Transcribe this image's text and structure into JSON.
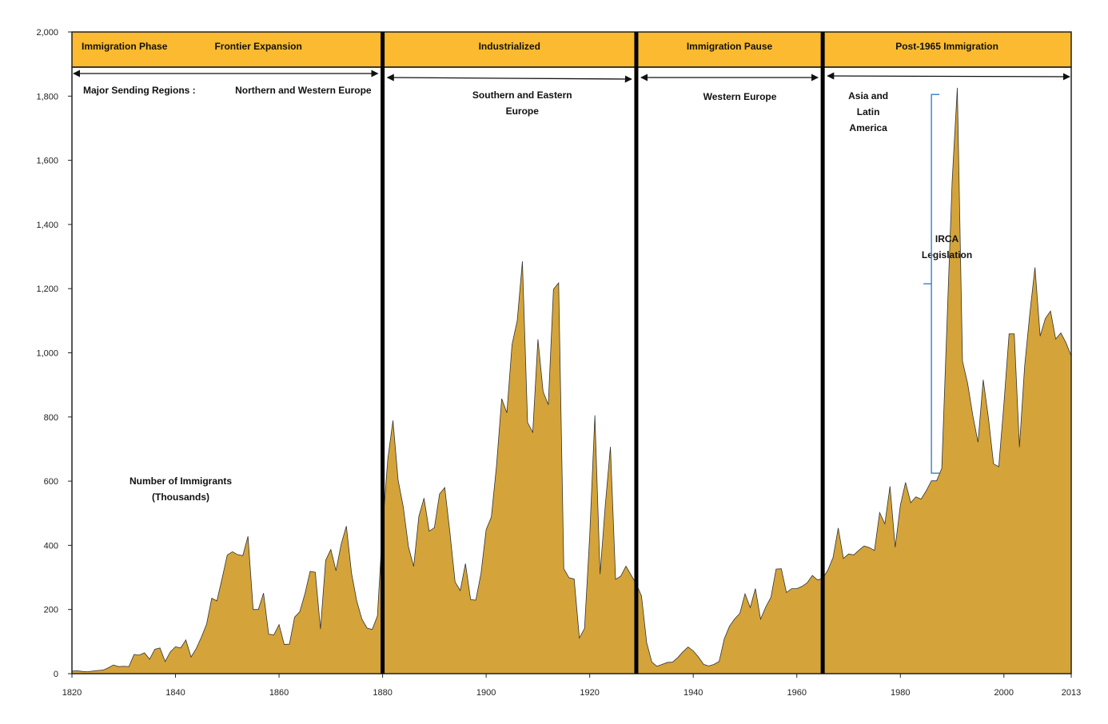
{
  "chart_data": {
    "type": "area",
    "title": "",
    "xlabel": "",
    "ylabel": "",
    "ylim": [
      0,
      2000
    ],
    "xlim": [
      1820,
      2013
    ],
    "y_ticks": [
      0,
      200,
      400,
      600,
      800,
      1000,
      1200,
      1400,
      1600,
      1800,
      2000
    ],
    "y_tick_labels": [
      "0",
      "200",
      "400",
      "600",
      "800",
      "1,000",
      "1,200",
      "1,400",
      "1,600",
      "1,800",
      "2,000"
    ],
    "x_ticks": [
      1820,
      1840,
      1860,
      1880,
      1900,
      1920,
      1940,
      1960,
      1980,
      2000,
      2013
    ],
    "x_tick_labels": [
      "1820",
      "1840",
      "1860",
      "1880",
      "1900",
      "1920",
      "1940",
      "1960",
      "1980",
      "2000",
      "2013"
    ],
    "fill_color": "#D4A43A",
    "stroke_color": "#333333",
    "header_color": "#FBBA2F",
    "phase_boundaries": [
      1880,
      1929,
      1965
    ],
    "phases": [
      {
        "label": "Immigration Phase",
        "start": 1820,
        "end": 1880,
        "align": "left"
      },
      {
        "label": "Frontier Expansion",
        "start": 1820,
        "end": 1880,
        "align": "center"
      },
      {
        "label": "Industrialized",
        "start": 1880,
        "end": 1929,
        "align": "center"
      },
      {
        "label": "Immigration Pause",
        "start": 1929,
        "end": 1965,
        "align": "center"
      },
      {
        "label": "Post-1965 Immigration",
        "start": 1965,
        "end": 2013,
        "align": "center"
      }
    ],
    "sending_regions_label": "Major Sending Regions :",
    "sending_regions": [
      {
        "lines": [
          "Northern and Western Europe"
        ],
        "start": 1820,
        "end": 1880
      },
      {
        "lines": [
          "Southern and Eastern",
          "Europe"
        ],
        "start": 1880,
        "end": 1929
      },
      {
        "lines": [
          "Western Europe"
        ],
        "start": 1929,
        "end": 1965
      },
      {
        "lines": [
          "Asia and",
          "Latin",
          "America"
        ],
        "start": 1965,
        "end": 2013
      }
    ],
    "annotations": [
      {
        "lines": [
          "Number of Immigrants",
          "(Thousands)"
        ],
        "x": 1841,
        "y": 590
      },
      {
        "lines": [
          "IRCA",
          "Legislation"
        ],
        "x": 1989,
        "y": 1345
      }
    ],
    "bracket": {
      "x": 1986,
      "y_bottom": 625,
      "y_top": 1805
    },
    "series": [
      {
        "name": "Number of Immigrants (Thousands)",
        "x": [
          1820,
          1821,
          1822,
          1823,
          1824,
          1825,
          1826,
          1827,
          1828,
          1829,
          1830,
          1831,
          1832,
          1833,
          1834,
          1835,
          1836,
          1837,
          1838,
          1839,
          1840,
          1841,
          1842,
          1843,
          1844,
          1845,
          1846,
          1847,
          1848,
          1849,
          1850,
          1851,
          1852,
          1853,
          1854,
          1855,
          1856,
          1857,
          1858,
          1859,
          1860,
          1861,
          1862,
          1863,
          1864,
          1865,
          1866,
          1867,
          1868,
          1869,
          1870,
          1871,
          1872,
          1873,
          1874,
          1875,
          1876,
          1877,
          1878,
          1879,
          1880,
          1881,
          1882,
          1883,
          1884,
          1885,
          1886,
          1887,
          1888,
          1889,
          1890,
          1891,
          1892,
          1893,
          1894,
          1895,
          1896,
          1897,
          1898,
          1899,
          1900,
          1901,
          1902,
          1903,
          1904,
          1905,
          1906,
          1907,
          1908,
          1909,
          1910,
          1911,
          1912,
          1913,
          1914,
          1915,
          1916,
          1917,
          1918,
          1919,
          1920,
          1921,
          1922,
          1923,
          1924,
          1925,
          1926,
          1927,
          1928,
          1929,
          1930,
          1931,
          1932,
          1933,
          1934,
          1935,
          1936,
          1937,
          1938,
          1939,
          1940,
          1941,
          1942,
          1943,
          1944,
          1945,
          1946,
          1947,
          1948,
          1949,
          1950,
          1951,
          1952,
          1953,
          1954,
          1955,
          1956,
          1957,
          1958,
          1959,
          1960,
          1961,
          1962,
          1963,
          1964,
          1965,
          1966,
          1967,
          1968,
          1969,
          1970,
          1971,
          1972,
          1973,
          1974,
          1975,
          1976,
          1977,
          1978,
          1979,
          1980,
          1981,
          1982,
          1983,
          1984,
          1985,
          1986,
          1987,
          1988,
          1989,
          1990,
          1991,
          1992,
          1993,
          1994,
          1995,
          1996,
          1997,
          1998,
          1999,
          2000,
          2001,
          2002,
          2003,
          2004,
          2005,
          2006,
          2007,
          2008,
          2009,
          2010,
          2011,
          2012,
          2013
        ],
        "values": [
          8,
          9,
          7,
          6,
          8,
          10,
          11,
          18,
          27,
          22,
          23,
          22,
          60,
          58,
          65,
          45,
          76,
          80,
          38,
          68,
          84,
          80,
          105,
          52,
          78,
          114,
          154,
          235,
          227,
          297,
          370,
          380,
          371,
          368,
          428,
          200,
          200,
          251,
          123,
          121,
          153,
          91,
          92,
          176,
          193,
          249,
          319,
          316,
          139,
          353,
          387,
          321,
          404,
          460,
          313,
          227,
          170,
          142,
          138,
          180,
          457,
          669,
          789,
          603,
          519,
          395,
          334,
          490,
          547,
          444,
          455,
          560,
          580,
          440,
          286,
          259,
          343,
          231,
          229,
          312,
          449,
          488,
          648,
          857,
          813,
          1026,
          1100,
          1285,
          783,
          752,
          1042,
          879,
          838,
          1198,
          1218,
          327,
          299,
          295,
          111,
          141,
          430,
          805,
          310,
          523,
          707,
          294,
          304,
          335,
          307,
          280,
          242,
          97,
          36,
          23,
          29,
          35,
          36,
          50,
          68,
          83,
          71,
          52,
          29,
          24,
          29,
          38,
          109,
          148,
          171,
          188,
          249,
          206,
          265,
          170,
          208,
          238,
          326,
          327,
          253,
          265,
          265,
          272,
          283,
          306,
          292,
          297,
          323,
          362,
          454,
          359,
          373,
          370,
          385,
          398,
          393,
          384,
          502,
          467,
          584,
          394,
          525,
          596,
          533,
          551,
          544,
          570,
          601,
          601,
          640,
          1090,
          1535,
          1826,
          974,
          904,
          804,
          721,
          916,
          798,
          654,
          645,
          841,
          1059,
          1059,
          706,
          958,
          1122,
          1266,
          1052,
          1107,
          1130,
          1043,
          1062,
          1031,
          990
        ]
      }
    ]
  }
}
